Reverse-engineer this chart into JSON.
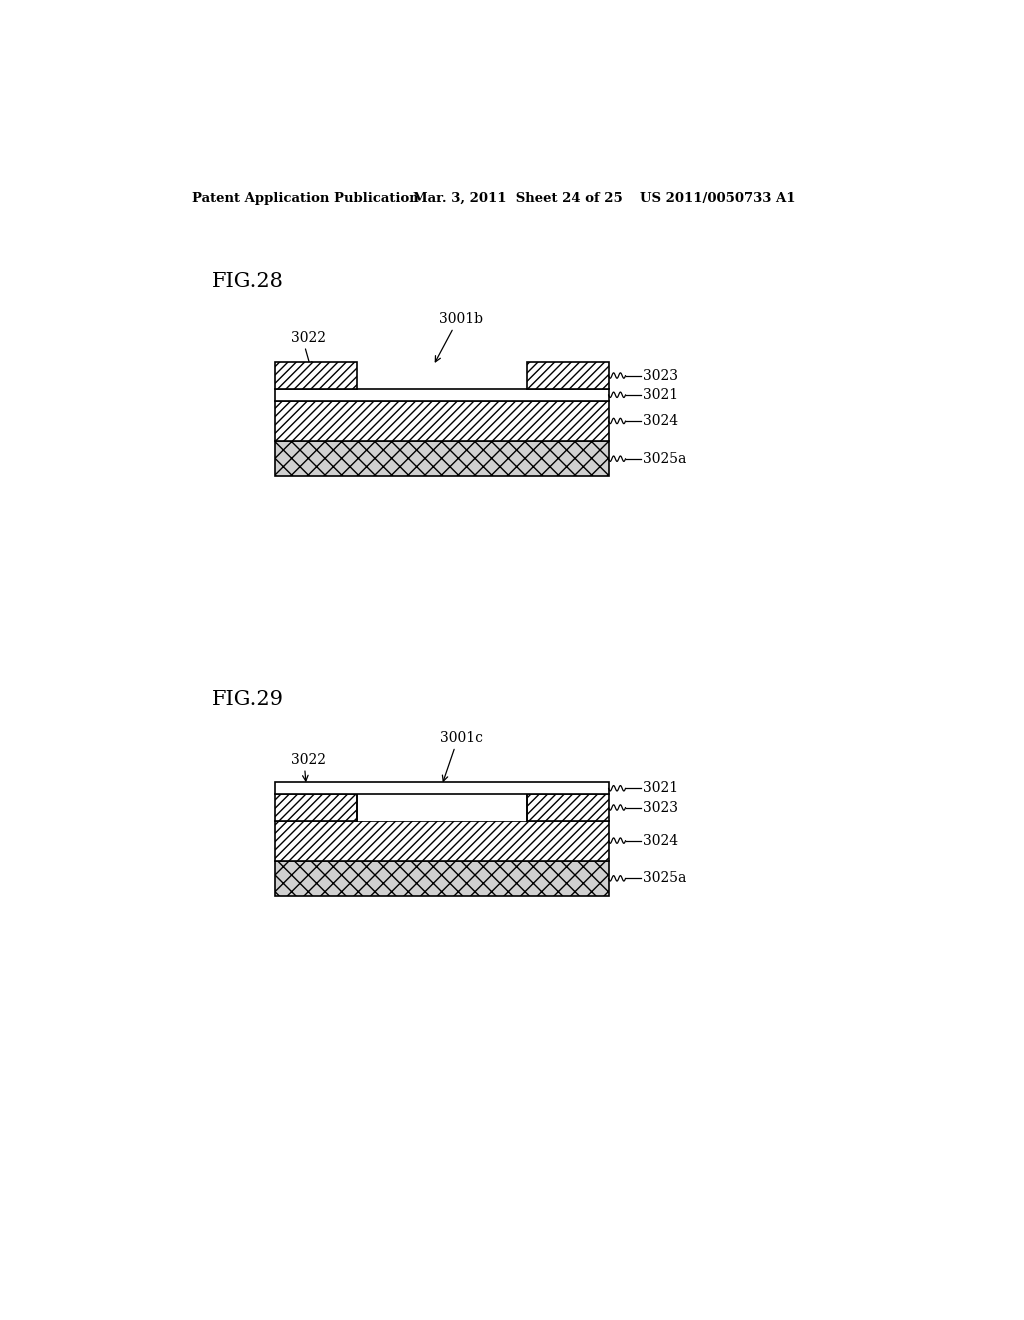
{
  "header_left": "Patent Application Publication",
  "header_mid": "Mar. 3, 2011  Sheet 24 of 25",
  "header_right": "US 2011/0050733 A1",
  "fig28_label": "FIG.28",
  "fig29_label": "FIG.29",
  "fig28": {
    "label_3001b": "3001b",
    "label_3022": "3022",
    "label_3023": "3023",
    "label_3021": "3021",
    "label_3024": "3024",
    "label_3025a": "3025a"
  },
  "fig29": {
    "label_3001c": "3001c",
    "label_3022": "3022",
    "label_3021": "3021",
    "label_3023": "3023",
    "label_3024": "3024",
    "label_3025a": "3025a"
  },
  "bg_color": "#ffffff",
  "line_color": "#000000"
}
